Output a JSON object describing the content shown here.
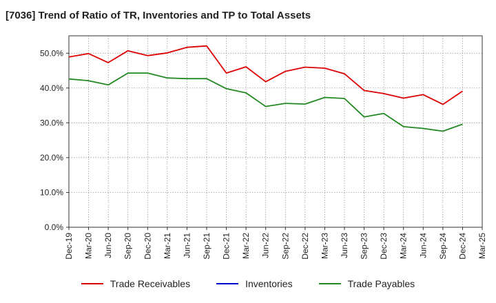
{
  "chart_data": {
    "type": "line",
    "title": "[7036]  Trend of Ratio of TR, Inventories and TP to Total Assets",
    "xlabel": "",
    "ylabel": "",
    "x": [
      "Dec-19",
      "Mar-20",
      "Jun-20",
      "Sep-20",
      "Dec-20",
      "Mar-21",
      "Jun-21",
      "Sep-21",
      "Dec-21",
      "Mar-22",
      "Jun-22",
      "Sep-22",
      "Dec-22",
      "Mar-23",
      "Jun-23",
      "Sep-23",
      "Dec-23",
      "Mar-24",
      "Jun-24",
      "Sep-24",
      "Dec-24",
      "Mar-25"
    ],
    "ylim": [
      0,
      55
    ],
    "yticks": [
      0,
      10,
      20,
      30,
      40,
      50
    ],
    "ytick_labels": [
      "0.0%",
      "10.0%",
      "20.0%",
      "30.0%",
      "40.0%",
      "50.0%"
    ],
    "grid": true,
    "legend_position": "bottom",
    "series": [
      {
        "name": "Trade Receivables",
        "color": "#dd0000",
        "values": [
          48.9,
          49.9,
          47.3,
          50.7,
          49.3,
          50.1,
          51.7,
          52.1,
          44.3,
          46.1,
          41.8,
          44.8,
          46.0,
          45.7,
          44.1,
          39.3,
          38.4,
          37.1,
          38.1,
          35.3,
          39.1,
          null
        ]
      },
      {
        "name": "Inventories",
        "color": "#0000cc",
        "values": [
          null,
          null,
          null,
          null,
          null,
          null,
          null,
          null,
          null,
          null,
          null,
          null,
          null,
          null,
          null,
          null,
          null,
          null,
          null,
          null,
          null,
          null
        ]
      },
      {
        "name": "Trade Payables",
        "color": "#228822",
        "values": [
          42.6,
          42.1,
          40.9,
          44.3,
          44.3,
          42.9,
          42.7,
          42.7,
          39.8,
          38.6,
          34.7,
          35.6,
          35.4,
          37.3,
          37.0,
          31.7,
          32.7,
          28.9,
          28.4,
          27.6,
          29.6,
          null
        ]
      }
    ]
  }
}
